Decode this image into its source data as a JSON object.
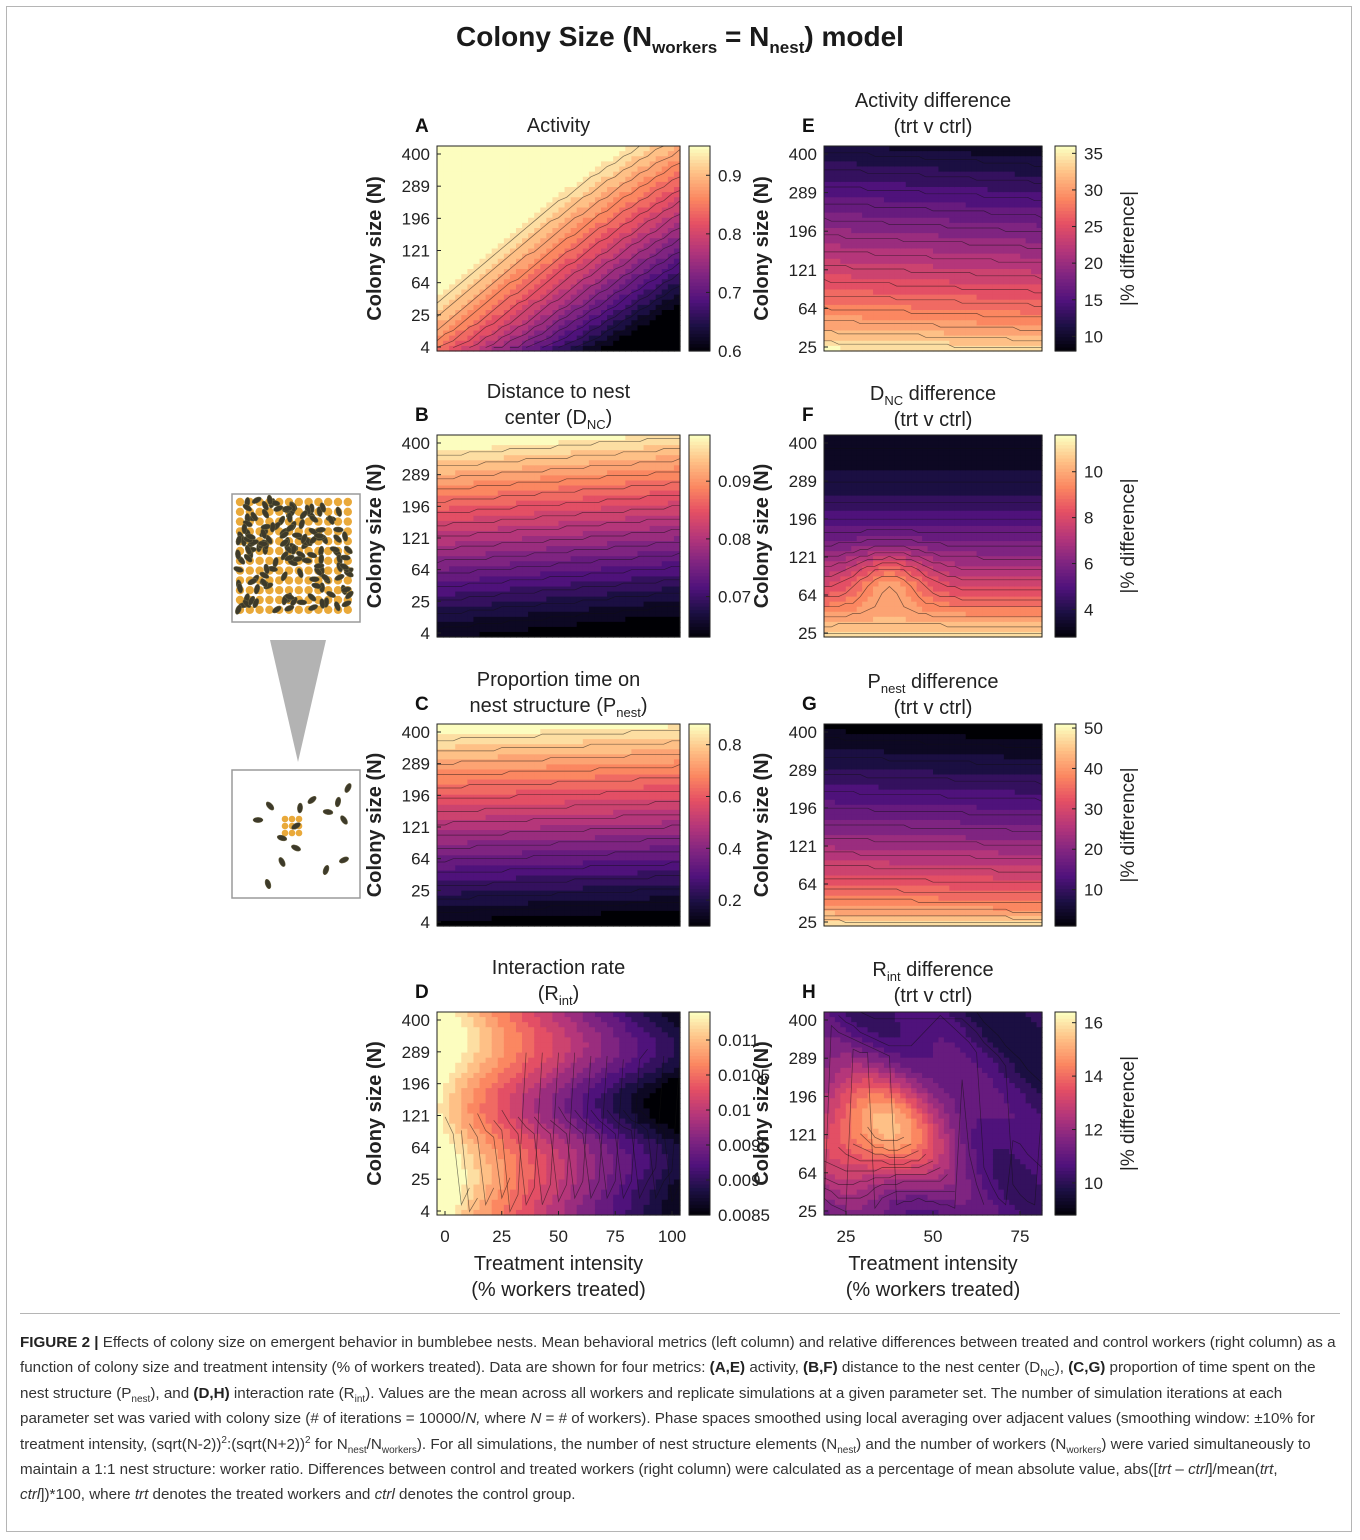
{
  "figure": {
    "title_prefix": "Colony Size (N",
    "title_sub1": "workers",
    "title_mid": " = N",
    "title_sub2": "nest",
    "title_suffix": ") model"
  },
  "caption": {
    "figure_label": "FIGURE 2 |",
    "text_1": " Effects of colony size on emergent behavior in bumblebee nests. Mean behavioral metrics (left column) and relative differences between treated and control workers (right column) as a function of colony size and treatment intensity (% of workers treated). Data are shown for four metrics: ",
    "ref_ae": "(A,E)",
    "text_2": " activity, ",
    "ref_bf": "(B,F)",
    "text_3": " distance to the nest center (D",
    "sub_nc": "NC",
    "text_4": "), ",
    "ref_cg": "(C,G)",
    "text_5": " proportion of time spent on the nest structure (P",
    "sub_nest": "nest",
    "text_6": "), and ",
    "ref_dh": "(D,H)",
    "text_7": " interaction rate (R",
    "sub_int": "int",
    "text_8": "). Values are the mean across all workers and replicate simulations at a given parameter set. The number of simulation iterations at each parameter set was varied with colony size (# of iterations = 10000/",
    "italic_n": "N,",
    "text_9": " where ",
    "italic_n2": "N",
    "text_10": " = # of workers). Phase spaces smoothed using local averaging over adjacent values (smoothing window: ±10% for treatment intensity, (sqrt(N-2))",
    "sup_2a": "2",
    "text_11": ":(sqrt(N+2))",
    "sup_2b": "2",
    "text_12": " for N",
    "sub_nest2": "nest",
    "text_13": "/N",
    "sub_workers": "workers",
    "text_14": "). For all simulations, the number of nest structure elements (N",
    "sub_nest3": "nest",
    "text_15": ") and the number of workers (N",
    "sub_workers2": "workers",
    "text_16": ") were varied simultaneously to maintain a 1:1 nest structure: worker ratio. Differences between control and treated workers (right column) were calculated as a percentage of mean absolute value, abs([",
    "it_trt1": "trt",
    "text_17": " – ",
    "it_ctrl1": "ctrl",
    "text_18": "]/mean(",
    "it_trt2": "trt",
    "text_19": ", ",
    "it_ctrl2": "ctrl",
    "text_20": "])*100, where ",
    "it_trt3": "trt",
    "text_21": " denotes the treated workers and ",
    "it_ctrl3": "ctrl",
    "text_22": " denotes the control group."
  },
  "chart_data": [
    {
      "panel": "A",
      "type": "heatmap",
      "colormap": "magma",
      "title_lines": [
        "Activity"
      ],
      "ylabel": "Colony size (N)",
      "yticks": [
        "4",
        "25",
        "64",
        "121",
        "196",
        "289",
        "400"
      ],
      "xlabel": "",
      "xticks": [],
      "x_range": [
        0,
        100
      ],
      "y_range": [
        4,
        400
      ],
      "field": "activity",
      "clim": [
        0.6,
        0.95
      ],
      "colorbar_ticks": [
        0.6,
        0.7,
        0.8,
        0.9
      ],
      "colorbar_ticklabels": [
        "0.6",
        "0.7",
        "0.8",
        "0.9"
      ],
      "colorbar_label": ""
    },
    {
      "panel": "B",
      "type": "heatmap",
      "colormap": "magma",
      "title_lines": [
        "Distance to nest",
        "center (D",
        "NC",
        ")"
      ],
      "ylabel": "Colony size (N)",
      "yticks": [
        "4",
        "25",
        "64",
        "121",
        "196",
        "289",
        "400"
      ],
      "xlabel": "",
      "xticks": [],
      "x_range": [
        0,
        100
      ],
      "y_range": [
        4,
        400
      ],
      "field": "dnc",
      "clim": [
        0.063,
        0.098
      ],
      "colorbar_ticks": [
        0.07,
        0.08,
        0.09
      ],
      "colorbar_ticklabels": [
        "0.07",
        "0.08",
        "0.09"
      ],
      "colorbar_label": ""
    },
    {
      "panel": "C",
      "type": "heatmap",
      "colormap": "magma",
      "title_lines": [
        "Proportion time on",
        "nest structure (P",
        "nest",
        ")"
      ],
      "ylabel": "Colony size (N)",
      "yticks": [
        "4",
        "25",
        "64",
        "121",
        "196",
        "289",
        "400"
      ],
      "xlabel": "",
      "xticks": [],
      "x_range": [
        0,
        100
      ],
      "y_range": [
        4,
        400
      ],
      "field": "pnest",
      "clim": [
        0.1,
        0.88
      ],
      "colorbar_ticks": [
        0.2,
        0.4,
        0.6,
        0.8
      ],
      "colorbar_ticklabels": [
        "0.2",
        "0.4",
        "0.6",
        "0.8"
      ],
      "colorbar_label": ""
    },
    {
      "panel": "D",
      "type": "heatmap",
      "colormap": "magma",
      "title_lines": [
        "Interaction rate",
        "(R",
        "int",
        ")"
      ],
      "ylabel": "Colony size (N)",
      "yticks": [
        "4",
        "25",
        "64",
        "121",
        "196",
        "289",
        "400"
      ],
      "xlabel_lines": [
        "Treatment intensity",
        "(% workers treated)"
      ],
      "xticks": [
        "0",
        "25",
        "50",
        "75",
        "100"
      ],
      "x_range": [
        0,
        100
      ],
      "y_range": [
        4,
        400
      ],
      "field": "rint",
      "clim": [
        0.0085,
        0.0114
      ],
      "colorbar_ticks": [
        0.0085,
        0.009,
        0.0095,
        0.01,
        0.0105,
        0.011
      ],
      "colorbar_ticklabels": [
        "0.0085",
        "0.009",
        "0.0095",
        "0.01",
        "0.0105",
        "0.011"
      ],
      "colorbar_label": ""
    },
    {
      "panel": "E",
      "type": "heatmap",
      "colormap": "magma",
      "title_lines": [
        "Activity difference",
        "(trt v ctrl)"
      ],
      "ylabel": "Colony size (N)",
      "yticks": [
        "25",
        "64",
        "121",
        "196",
        "289",
        "400"
      ],
      "xlabel": "",
      "xticks": [],
      "x_range": [
        25,
        75
      ],
      "y_range": [
        25,
        400
      ],
      "field": "actdiff",
      "clim": [
        8,
        36
      ],
      "colorbar_ticks": [
        10,
        15,
        20,
        25,
        30,
        35
      ],
      "colorbar_ticklabels": [
        "10",
        "15",
        "20",
        "25",
        "30",
        "35"
      ],
      "colorbar_label": "|% difference|"
    },
    {
      "panel": "F",
      "type": "heatmap",
      "colormap": "magma",
      "title_lines": [
        "D",
        "NC",
        " difference",
        "(trt v ctrl)"
      ],
      "ylabel": "Colony size (N)",
      "yticks": [
        "25",
        "64",
        "121",
        "196",
        "289",
        "400"
      ],
      "xlabel": "",
      "xticks": [],
      "x_range": [
        25,
        75
      ],
      "y_range": [
        25,
        400
      ],
      "field": "dncdiff",
      "clim": [
        2.8,
        11.6
      ],
      "colorbar_ticks": [
        4,
        6,
        8,
        10
      ],
      "colorbar_ticklabels": [
        "4",
        "6",
        "8",
        "10"
      ],
      "colorbar_label": "|% difference|"
    },
    {
      "panel": "G",
      "type": "heatmap",
      "colormap": "magma",
      "title_lines": [
        "P",
        "nest",
        " difference",
        "(trt v ctrl)"
      ],
      "ylabel": "Colony size (N)",
      "yticks": [
        "25",
        "64",
        "121",
        "196",
        "289",
        "400"
      ],
      "xlabel": "",
      "xticks": [],
      "x_range": [
        25,
        75
      ],
      "y_range": [
        25,
        400
      ],
      "field": "pnestdiff",
      "clim": [
        1,
        51
      ],
      "colorbar_ticks": [
        10,
        20,
        30,
        40,
        50
      ],
      "colorbar_ticklabels": [
        "10",
        "20",
        "30",
        "40",
        "50"
      ],
      "colorbar_label": "|% difference|"
    },
    {
      "panel": "H",
      "type": "heatmap",
      "colormap": "magma",
      "title_lines": [
        "R",
        "int",
        " difference",
        "(trt v ctrl)"
      ],
      "ylabel": "Colony size (N)",
      "yticks": [
        "25",
        "64",
        "121",
        "196",
        "289",
        "400"
      ],
      "xlabel_lines": [
        "Treatment intensity",
        "(% workers treated)"
      ],
      "xticks": [
        "25",
        "50",
        "75"
      ],
      "x_range": [
        25,
        75
      ],
      "y_range": [
        25,
        400
      ],
      "field": "rintdiff",
      "clim": [
        8.8,
        16.4
      ],
      "colorbar_ticks": [
        10,
        12,
        14,
        16
      ],
      "colorbar_ticklabels": [
        "10",
        "12",
        "14",
        "16"
      ],
      "colorbar_label": "|% difference|"
    }
  ],
  "illustration": {
    "top_box": "large nest",
    "bottom_box": "small nest",
    "arrow": "triangle"
  }
}
